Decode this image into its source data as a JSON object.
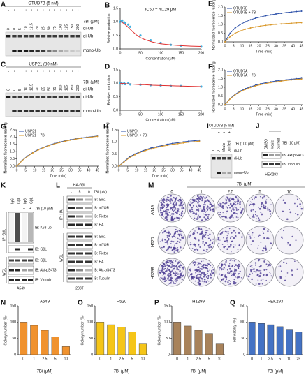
{
  "panels": {
    "A": {
      "letter": "A",
      "enzyme": "OTUD7B (5 nM)",
      "enzyme_row": [
        "-",
        "+",
        "+",
        "+",
        "+",
        "+",
        "+",
        "+",
        "+",
        "+",
        "+",
        "+",
        "+"
      ],
      "dose": [
        "0",
        "0",
        "5",
        "10",
        "12.5",
        "20",
        "25",
        "50",
        "75",
        "100",
        "125",
        "150",
        "200"
      ],
      "dose_label": "7Bi (μM)",
      "top_band": "di-Ub",
      "bands": [
        "di-Ub",
        "mono-Ub"
      ]
    },
    "C": {
      "letter": "C",
      "enzyme": "USP21 (80 nM)",
      "enzyme_row": [
        "-",
        "+",
        "+",
        "+",
        "+",
        "+",
        "+",
        "+",
        "+",
        "+",
        "+",
        "+",
        "+"
      ],
      "dose": [
        "0",
        "0",
        "5",
        "10",
        "12.5",
        "20",
        "25",
        "50",
        "75",
        "100",
        "125",
        "150",
        "200"
      ],
      "dose_label": "7Bi (μM)",
      "top_band": "di-Ub",
      "bands": [
        "di-Ub",
        "mono-Ub"
      ]
    },
    "I": {
      "letter": "I",
      "enzyme": "OTUD7B (5 nM)",
      "enzyme_row": [
        "-",
        "+",
        "+",
        "+"
      ],
      "dose": [
        "0",
        "0",
        "Mcule",
        "purified"
      ],
      "dose_label": "7Bi (100 μM)",
      "top_band": "di-Ub",
      "bands": [
        "di-Ub",
        "mono-Ub"
      ]
    },
    "J": {
      "letter": "J",
      "lanes": [
        "DMSO",
        "Mcule",
        "purified"
      ],
      "treatment": "7Bi (10 μM)",
      "blots": [
        "IB: Akt-pS473",
        "IB: Vinculin"
      ],
      "cell": "HEK293"
    },
    "K": {
      "letter": "K",
      "lanes": [
        "IgG",
        "GβL",
        "IgG",
        "GβL"
      ],
      "treat_row": [
        "-",
        "-",
        "+",
        "+"
      ],
      "treatment": "7Bi (10 μM)",
      "ip": "IP: GβL",
      "ip_blots": [
        "IB: K63-ub",
        "IB: GβL"
      ],
      "wcl": "WCL",
      "wcl_blots": [
        "IB: GβL",
        "IB: Akt-pS473",
        "IB: Vinculin"
      ],
      "cell": "A549"
    },
    "L": {
      "letter": "L",
      "construct": "HA-GβL",
      "doses": [
        "-",
        "5",
        "10"
      ],
      "dose_label": "7Bi (μM)",
      "ip": "IP: HA",
      "ip_blots": [
        "IB: Sin1",
        "IB: mTOR",
        "IB: Rictor",
        "IB: HA"
      ],
      "wcl": "WCL",
      "wcl_blots": [
        "IB: Sin1",
        "IB: mTOR",
        "IB: Rictor",
        "IB: HA",
        "IB: Akt-pS473",
        "IB: Tubulin"
      ],
      "cell": "293T"
    },
    "M": {
      "letter": "M",
      "treatment": "7Bi (μM)",
      "doses": [
        "0",
        "1",
        "2.5",
        "5",
        "10"
      ],
      "cells": [
        "A549",
        "H520",
        "H1299"
      ]
    }
  },
  "chart_data": [
    {
      "panel": "B",
      "type": "scatter",
      "annotation": "IC50 = 40.29 μM",
      "ylabel": "Relative production",
      "xlabel": "Concentration (μM)",
      "xlim": [
        0,
        200
      ],
      "xticks": [
        0,
        50,
        100,
        150,
        200
      ],
      "ylim": [
        0,
        1.5
      ],
      "yticks": [
        {
          "value": 0,
          "label": "0.0"
        },
        0.5,
        {
          "value": 1,
          "label": "1.0"
        },
        1.5
      ],
      "series": [
        {
          "color": "#3fb0e0",
          "x": [
            0,
            1,
            5,
            10,
            12.5,
            20,
            25,
            50,
            75,
            100,
            125,
            150,
            200
          ],
          "values": [
            1.0,
            1.02,
            1.05,
            0.98,
            0.95,
            0.9,
            0.82,
            0.5,
            0.32,
            0.22,
            0.15,
            0.12,
            0.08
          ]
        },
        {
          "color": "#e03030",
          "style": "line",
          "x": [
            0,
            10,
            20,
            30,
            40,
            50,
            60,
            80,
            100,
            125,
            150,
            175,
            200
          ],
          "values": [
            1.02,
            0.93,
            0.8,
            0.65,
            0.52,
            0.42,
            0.35,
            0.25,
            0.19,
            0.15,
            0.12,
            0.1,
            0.09
          ]
        }
      ]
    },
    {
      "panel": "D",
      "type": "scatter",
      "ylabel": "Relative production",
      "xlabel": "Concentration (μM)",
      "xlim": [
        0,
        200
      ],
      "xticks": [
        0,
        50,
        100,
        150,
        200
      ],
      "ylim": [
        0,
        1.5
      ],
      "yticks": [
        {
          "value": 0,
          "label": "0.0"
        },
        0.5,
        {
          "value": 1,
          "label": "1.0"
        },
        1.5
      ],
      "series": [
        {
          "color": "#3fb0e0",
          "x": [
            0,
            1,
            5,
            10,
            12.5,
            20,
            25,
            50,
            75,
            100,
            125,
            150,
            200
          ],
          "values": [
            1.0,
            1.02,
            0.98,
            1.0,
            0.97,
            1.0,
            0.96,
            0.95,
            0.93,
            0.92,
            0.9,
            0.9,
            0.88
          ]
        },
        {
          "color": "#e03030",
          "style": "line",
          "x": [
            0,
            10,
            20,
            30,
            40,
            50,
            60,
            80,
            100,
            125,
            150,
            175,
            200
          ],
          "values": [
            1.0,
            0.99,
            0.98,
            0.97,
            0.96,
            0.95,
            0.95,
            0.93,
            0.92,
            0.91,
            0.9,
            0.89,
            0.88
          ]
        }
      ]
    },
    {
      "panel": "E",
      "type": "line",
      "ylabel": "Normalized fluorescence reading",
      "xlabel": "Time (min)",
      "x": [
        0,
        3,
        6,
        9,
        12,
        15,
        18,
        21,
        24,
        27,
        30,
        33,
        36,
        39,
        42,
        45
      ],
      "xlim": [
        0,
        46
      ],
      "xticks": [
        0,
        5,
        10,
        15,
        20,
        25,
        30,
        35,
        40,
        45
      ],
      "ylim": [
        0,
        2
      ],
      "yticks": [
        {
          "value": 0,
          "label": "0.0"
        },
        0.5,
        {
          "value": 1,
          "label": "1.0"
        },
        1.5,
        {
          "value": 2,
          "label": "2.0"
        }
      ],
      "series": [
        {
          "name": "OTUD7B",
          "color": "#2b4fa8",
          "values": [
            0,
            0.5,
            0.8,
            1.0,
            1.15,
            1.27,
            1.36,
            1.43,
            1.5,
            1.55,
            1.6,
            1.64,
            1.68,
            1.71,
            1.74,
            1.76
          ]
        },
        {
          "name": "OTUD7B + 7Bi",
          "color": "#d9982b",
          "values": [
            0,
            0.3,
            0.5,
            0.63,
            0.73,
            0.8,
            0.86,
            0.91,
            0.95,
            0.98,
            1.01,
            1.03,
            1.05,
            1.07,
            1.09,
            1.1
          ]
        }
      ]
    },
    {
      "panel": "F",
      "type": "line",
      "ylabel": "Normalized fluorescence reading",
      "xlabel": "Time (min)",
      "x": [
        0,
        3,
        6,
        9,
        12,
        15,
        18,
        21,
        24,
        27,
        30,
        33,
        36,
        39,
        42,
        45
      ],
      "xlim": [
        0,
        46
      ],
      "xticks": [
        0,
        5,
        10,
        15,
        20,
        25,
        30,
        35,
        40,
        45
      ],
      "ylim": [
        0,
        2
      ],
      "yticks": [
        {
          "value": 0,
          "label": "0.0"
        },
        0.5,
        {
          "value": 1,
          "label": "1.0"
        },
        1.5,
        {
          "value": 2,
          "label": "2.0"
        }
      ],
      "series": [
        {
          "name": "OTUD7A",
          "color": "#2b4fa8",
          "values": [
            0,
            0.35,
            0.6,
            0.78,
            0.92,
            1.03,
            1.12,
            1.2,
            1.26,
            1.31,
            1.36,
            1.4,
            1.43,
            1.46,
            1.49,
            1.51
          ]
        },
        {
          "name": "OTUD7A + 7Bi",
          "color": "#d9982b",
          "values": [
            0,
            0.33,
            0.57,
            0.75,
            0.88,
            0.99,
            1.08,
            1.15,
            1.21,
            1.27,
            1.31,
            1.35,
            1.39,
            1.42,
            1.45,
            1.47
          ]
        }
      ]
    },
    {
      "panel": "G",
      "type": "line",
      "ylabel": "Normalized fluorescence reading",
      "xlabel": "Time (min)",
      "x": [
        0,
        3,
        6,
        9,
        12,
        15,
        18,
        21,
        24,
        27,
        30,
        33,
        36,
        39,
        42,
        45
      ],
      "xlim": [
        0,
        46
      ],
      "xticks": [
        0,
        5,
        10,
        15,
        20,
        25,
        30,
        35,
        40,
        45
      ],
      "ylim": [
        0,
        2.5
      ],
      "yticks": [
        {
          "value": 0,
          "label": "0.0"
        },
        0.5,
        {
          "value": 1,
          "label": "1.0"
        },
        1.5,
        {
          "value": 2,
          "label": "2.0"
        },
        2.5
      ],
      "series": [
        {
          "name": "USP21",
          "color": "#2b4fa8",
          "values": [
            0,
            0.4,
            0.7,
            0.95,
            1.15,
            1.3,
            1.45,
            1.56,
            1.66,
            1.75,
            1.82,
            1.88,
            1.94,
            1.99,
            2.03,
            2.07
          ]
        },
        {
          "name": "USP21 + 7Bi",
          "color": "#d9982b",
          "values": [
            0,
            0.38,
            0.68,
            0.92,
            1.12,
            1.28,
            1.42,
            1.53,
            1.63,
            1.72,
            1.79,
            1.86,
            1.92,
            1.97,
            2.01,
            2.05
          ]
        }
      ]
    },
    {
      "panel": "H",
      "type": "line",
      "ylabel": "Normalized fluorescence reading",
      "xlabel": "Time (min)",
      "x": [
        0,
        3,
        6,
        9,
        12,
        15,
        18,
        21,
        24,
        27,
        30,
        33,
        36,
        39,
        42,
        45
      ],
      "xlim": [
        0,
        46
      ],
      "xticks": [
        0,
        5,
        10,
        15,
        20,
        25,
        30,
        35,
        40,
        45
      ],
      "ylim": [
        0,
        1.5
      ],
      "yticks": [
        {
          "value": 0,
          "label": "0.0"
        },
        0.5,
        {
          "value": 1,
          "label": "1.0"
        },
        1.5
      ],
      "series": [
        {
          "name": "USP9X",
          "color": "#2b4fa8",
          "values": [
            0,
            0.2,
            0.38,
            0.5,
            0.6,
            0.68,
            0.75,
            0.8,
            0.85,
            0.9,
            0.94,
            0.97,
            1.0,
            1.03,
            1.05,
            1.07
          ]
        },
        {
          "name": "USP9X + 7Bi",
          "color": "#d9982b",
          "values": [
            0,
            0.18,
            0.35,
            0.47,
            0.57,
            0.65,
            0.71,
            0.77,
            0.82,
            0.86,
            0.9,
            0.93,
            0.96,
            0.99,
            1.01,
            1.03
          ]
        }
      ]
    },
    {
      "panel": "N",
      "type": "bar",
      "title": "A549",
      "ylabel": "Colony number (%)",
      "xlabel": "7Bi (μM)",
      "color": "#f0922e",
      "categories": [
        "0",
        "1",
        "2.5",
        "5",
        "10"
      ],
      "values": [
        100,
        90,
        75,
        55,
        25
      ],
      "ylim": [
        0,
        150
      ],
      "yticks": [
        0,
        50,
        100,
        150
      ]
    },
    {
      "panel": "O",
      "type": "bar",
      "title": "H520",
      "ylabel": "Colony number (%)",
      "xlabel": "7Bi (μM)",
      "color": "#f5c518",
      "categories": [
        "0",
        "1",
        "2.5",
        "5",
        "10"
      ],
      "values": [
        100,
        92,
        85,
        70,
        35
      ],
      "ylim": [
        0,
        150
      ],
      "yticks": [
        0,
        50,
        100,
        150
      ]
    },
    {
      "panel": "P",
      "type": "bar",
      "title": "H1299",
      "ylabel": "Colony number (%)",
      "xlabel": "7Bi (μM)",
      "color": "#a8825a",
      "categories": [
        "0",
        "1",
        "2.5",
        "5",
        "10"
      ],
      "values": [
        100,
        88,
        75,
        65,
        35
      ],
      "ylim": [
        0,
        150
      ],
      "yticks": [
        0,
        50,
        100,
        150
      ]
    },
    {
      "panel": "Q",
      "type": "bar",
      "title": "HEK293",
      "ylabel": "cell viability (%)",
      "xlabel": "7Bi (μM)",
      "color": "#4472c4",
      "categories": [
        "0",
        "1",
        "2.5",
        "5",
        "10",
        "25"
      ],
      "values": [
        100,
        96,
        92,
        86,
        78,
        70
      ],
      "ylim": [
        0,
        150
      ],
      "yticks": [
        0,
        50,
        100,
        150
      ]
    }
  ]
}
